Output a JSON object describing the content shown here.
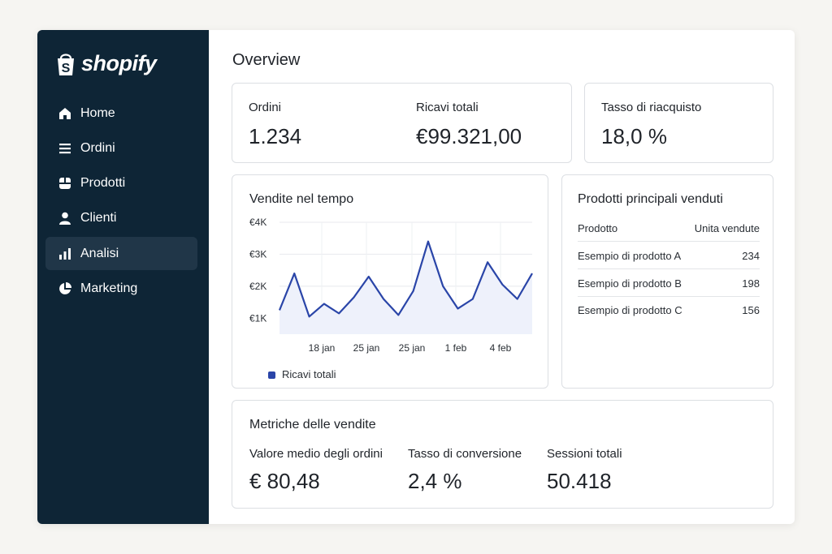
{
  "brand": {
    "name": "shopify"
  },
  "sidebar": {
    "items": [
      {
        "label": "Home",
        "icon": "home-icon",
        "active": false
      },
      {
        "label": "Ordini",
        "icon": "list-icon",
        "active": false
      },
      {
        "label": "Prodotti",
        "icon": "tag-icon",
        "active": false
      },
      {
        "label": "Clienti",
        "icon": "person-icon",
        "active": false
      },
      {
        "label": "Analisi",
        "icon": "bar-chart-icon",
        "active": true
      },
      {
        "label": "Marketing",
        "icon": "pie-chart-icon",
        "active": false
      }
    ]
  },
  "main": {
    "title": "Overview"
  },
  "summary": {
    "orders_label": "Ordini",
    "orders_value": "1.234",
    "revenue_label": "Ricavi totali",
    "revenue_value": "€99.321,00",
    "repurchase_label": "Tasso di riacquisto",
    "repurchase_value": "18,0 %"
  },
  "sales_chart": {
    "title": "Vendite nel tempo"
  },
  "chart_data": {
    "type": "area",
    "title": "Vendite nel tempo",
    "xlabel": "",
    "ylabel": "",
    "y_tick_labels": [
      "€4K",
      "€3K",
      "€2K",
      "€1K"
    ],
    "x_tick_labels": [
      "18 jan",
      "25 jan",
      "25 jan",
      "1 feb",
      "4 feb"
    ],
    "ylim": [
      0.5,
      4
    ],
    "grid": true,
    "legend": "bottom-left",
    "series": [
      {
        "name": "Ricavi totali",
        "color": "#2a45a8",
        "values": [
          1.25,
          2.4,
          1.05,
          1.45,
          1.15,
          1.65,
          2.3,
          1.6,
          1.1,
          1.85,
          3.4,
          2.0,
          1.3,
          1.6,
          2.75,
          2.05,
          1.6,
          2.4
        ]
      }
    ]
  },
  "top_products": {
    "title": "Prodotti principali venduti",
    "headers": [
      "Prodotto",
      "Unita vendute"
    ],
    "rows": [
      [
        "Esempio di prodotto A",
        "234"
      ],
      [
        "Esempio di prodotto B",
        "198"
      ],
      [
        "Esempio di prodotto C",
        "156"
      ]
    ]
  },
  "metrics": {
    "title": "Metriche delle vendite",
    "items": [
      {
        "label": "Valore medio degli ordini",
        "value": "€ 80,48"
      },
      {
        "label": "Tasso di conversione",
        "value": "2,4 %"
      },
      {
        "label": "Sessioni totali",
        "value": "50.418"
      }
    ]
  },
  "colors": {
    "sidebar": "#0e2536",
    "sidebar_active": "#203648",
    "accent": "#2a45a8",
    "area_fill": "#eef1fb"
  }
}
